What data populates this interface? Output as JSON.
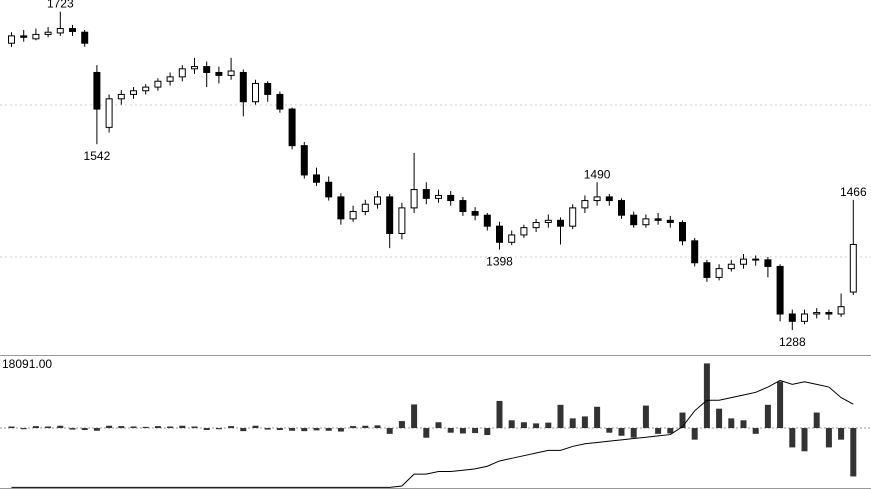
{
  "chart_data": {
    "type": "candlestick",
    "open": [
      1680,
      1690,
      1686,
      1692,
      1694,
      1700,
      1695,
      1640,
      1565,
      1604,
      1610,
      1615,
      1620,
      1628,
      1634,
      1645,
      1648,
      1640,
      1636,
      1640,
      1600,
      1625,
      1610,
      1590,
      1540,
      1500,
      1490,
      1470,
      1440,
      1450,
      1460,
      1470,
      1420,
      1455,
      1480,
      1468,
      1472,
      1465,
      1450,
      1445,
      1430,
      1408,
      1418,
      1428,
      1435,
      1438,
      1430,
      1455,
      1465,
      1470,
      1465,
      1445,
      1432,
      1440,
      1438,
      1435,
      1410,
      1380,
      1360,
      1372,
      1378,
      1385,
      1384,
      1375,
      1310,
      1300,
      1310,
      1312,
      1310,
      1340
    ],
    "high": [
      1695,
      1698,
      1700,
      1702,
      1723,
      1705,
      1698,
      1650,
      1610,
      1616,
      1620,
      1624,
      1632,
      1640,
      1650,
      1660,
      1655,
      1648,
      1660,
      1644,
      1630,
      1628,
      1614,
      1592,
      1545,
      1510,
      1498,
      1475,
      1458,
      1466,
      1478,
      1474,
      1462,
      1530,
      1490,
      1480,
      1478,
      1470,
      1456,
      1448,
      1436,
      1424,
      1432,
      1440,
      1446,
      1442,
      1460,
      1472,
      1490,
      1474,
      1468,
      1450,
      1446,
      1448,
      1444,
      1438,
      1414,
      1384,
      1378,
      1384,
      1392,
      1390,
      1388,
      1378,
      1316,
      1316,
      1318,
      1316,
      1338,
      1466
    ],
    "low": [
      1675,
      1682,
      1684,
      1688,
      1690,
      1690,
      1675,
      1542,
      1558,
      1596,
      1604,
      1610,
      1615,
      1622,
      1628,
      1638,
      1620,
      1625,
      1630,
      1580,
      1596,
      1600,
      1585,
      1535,
      1495,
      1485,
      1465,
      1432,
      1436,
      1445,
      1454,
      1400,
      1412,
      1448,
      1460,
      1462,
      1458,
      1444,
      1438,
      1424,
      1398,
      1404,
      1414,
      1422,
      1428,
      1405,
      1426,
      1448,
      1458,
      1458,
      1440,
      1428,
      1428,
      1432,
      1428,
      1404,
      1375,
      1354,
      1356,
      1368,
      1372,
      1376,
      1360,
      1300,
      1288,
      1296,
      1304,
      1302,
      1306,
      1336
    ],
    "close": [
      1690,
      1688,
      1692,
      1695,
      1700,
      1696,
      1680,
      1590,
      1604,
      1610,
      1615,
      1620,
      1628,
      1634,
      1645,
      1648,
      1640,
      1636,
      1642,
      1600,
      1625,
      1610,
      1590,
      1540,
      1500,
      1490,
      1470,
      1440,
      1450,
      1460,
      1470,
      1420,
      1455,
      1480,
      1468,
      1472,
      1465,
      1450,
      1445,
      1430,
      1408,
      1418,
      1428,
      1435,
      1438,
      1430,
      1455,
      1465,
      1470,
      1465,
      1445,
      1432,
      1440,
      1438,
      1435,
      1410,
      1380,
      1360,
      1372,
      1378,
      1385,
      1384,
      1375,
      1310,
      1300,
      1310,
      1312,
      1310,
      1320,
      1405
    ],
    "ylim": [
      1254,
      1739
    ],
    "up_color": "#ffffff",
    "down_color": "#000000",
    "marked_highs": [
      4,
      48,
      69
    ],
    "marked_lows": [
      7,
      40,
      64
    ],
    "volume": {
      "values": [
        400,
        -300,
        500,
        400,
        600,
        -400,
        -500,
        -700,
        600,
        500,
        400,
        300,
        500,
        400,
        600,
        400,
        -500,
        -300,
        500,
        -800,
        600,
        -400,
        -500,
        -700,
        -800,
        -600,
        -700,
        -900,
        500,
        600,
        700,
        -1500,
        1800,
        6100,
        -2500,
        1500,
        -1200,
        -1400,
        -1300,
        -1800,
        7000,
        2000,
        1500,
        1200,
        1400,
        6000,
        2500,
        3000,
        5500,
        -1200,
        -2000,
        -2500,
        5800,
        -1500,
        -1400,
        4000,
        -3000,
        16700,
        5000,
        2500,
        2000,
        -1500,
        6000,
        12000,
        -5000,
        -6000,
        4000,
        -5000,
        -3000,
        -12500
      ],
      "ylim": [
        -16000,
        18091
      ],
      "yticks": [
        {
          "value": 18091,
          "label": "18091.00"
        }
      ],
      "color": "#333333"
    },
    "indicator": {
      "values": [
        2,
        2,
        2,
        2,
        2,
        2,
        2,
        2,
        2,
        2,
        2,
        2,
        2,
        2,
        2,
        2,
        2,
        2,
        2,
        2,
        2,
        2,
        2,
        2,
        2,
        2,
        2,
        2,
        2,
        2,
        2,
        2,
        3,
        12,
        12,
        14,
        14,
        15,
        16,
        18,
        22,
        24,
        26,
        28,
        30,
        30,
        33,
        35,
        36,
        37,
        38,
        39,
        40,
        41,
        42,
        48,
        60,
        68,
        68,
        70,
        72,
        74,
        78,
        83,
        80,
        82,
        80,
        78,
        70,
        65
      ],
      "ylim": [
        0,
        100
      ],
      "color": "#000000"
    }
  }
}
